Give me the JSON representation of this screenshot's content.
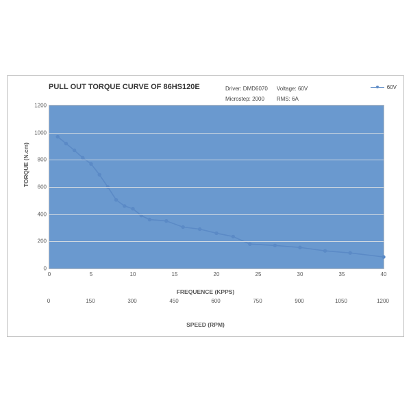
{
  "title": "PULL OUT TORQUE CURVE OF 86HS120E",
  "meta": {
    "driver_label": "Driver:",
    "driver_value": "DMD6070",
    "voltage_label": "Voltage:",
    "voltage_value": "60V",
    "microstep_label": "Microstep:",
    "microstep_value": "2000",
    "rms_label": "RMS:",
    "rms_value": "6A"
  },
  "legend": {
    "series_label": "60V"
  },
  "chart": {
    "type": "line",
    "background_color": "#6a99cf",
    "grid_color": "#d0d8e0",
    "axis_text_color": "#595959",
    "series_color": "#5b8ac6",
    "marker_stroke": "#5b8ac6",
    "marker_fill": "#5b8ac6",
    "line_width": 1.6,
    "marker_radius": 2.2,
    "y": {
      "label": "TORQUE (N.cm)",
      "min": 0,
      "max": 1200,
      "step": 200,
      "ticks": [
        0,
        200,
        400,
        600,
        800,
        1000,
        1200
      ]
    },
    "x": {
      "label": "FREQUENCE (KPPS)",
      "min": 0,
      "max": 40,
      "step": 5,
      "ticks": [
        0,
        5,
        10,
        15,
        20,
        25,
        30,
        35,
        40
      ]
    },
    "x2": {
      "label": "SPEED (RPM)",
      "ticks": [
        0,
        150,
        300,
        450,
        600,
        750,
        900,
        1050,
        1200
      ]
    },
    "data": {
      "x": [
        1,
        2,
        3,
        4,
        5,
        6,
        7,
        8,
        9,
        10,
        11,
        12,
        14,
        16,
        18,
        20,
        22,
        24,
        27,
        30,
        33,
        36,
        40
      ],
      "y": [
        970,
        920,
        870,
        815,
        770,
        690,
        600,
        505,
        460,
        440,
        390,
        360,
        350,
        305,
        290,
        260,
        235,
        180,
        170,
        155,
        130,
        115,
        85
      ]
    }
  }
}
